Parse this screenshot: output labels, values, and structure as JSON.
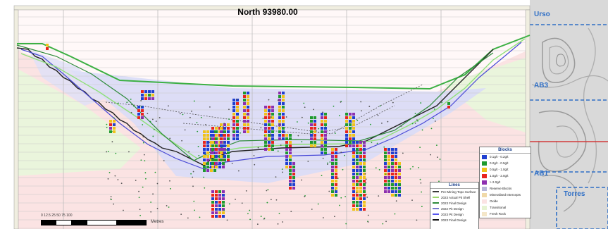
{
  "section_title": "North  93980.00",
  "zone_labels": {
    "urso": "Urso",
    "ab3": "AB3",
    "ab1": "AB1",
    "torres": "Torres"
  },
  "legend_blocks": {
    "title": "Blocks",
    "items": [
      {
        "label": "0.1g/t - 0.2g/t",
        "color": "#1f3fd0"
      },
      {
        "label": "0.2g/t - 0.5g/t",
        "color": "#1f9a2e"
      },
      {
        "label": "0.5g/t - 1.0g/t",
        "color": "#f0c21a"
      },
      {
        "label": "1.0g/t - 2.0g/t",
        "color": "#e8251c"
      },
      {
        "label": "> 2.0g/t",
        "color": "#8d2fb0"
      },
      {
        "label": "Reserve Blocks",
        "color": "#b7b7d8"
      },
      {
        "label": "Mineralised Intercepts",
        "color": "#f0d9a8"
      },
      {
        "label": "Oxide",
        "color": "#fbe3e3"
      },
      {
        "label": "Transitional",
        "color": "#e6f3d2"
      },
      {
        "label": "Fresh Rock",
        "color": "#f4e6c8"
      }
    ]
  },
  "legend_lines": {
    "title": "Lines",
    "items": [
      {
        "label": "Pre-Mining Topo Surface",
        "color": "#3a3a3a"
      },
      {
        "label": "2023 Actual Pit Shell",
        "color": "#9ad66c"
      },
      {
        "label": "2023 Final Design",
        "color": "#2e8b3a"
      },
      {
        "label": "2022 Pit Design",
        "color": "#7777cc"
      },
      {
        "label": "2023 Pit Design",
        "color": "#5555ee"
      },
      {
        "label": "2023 Final Design",
        "color": "#111111"
      }
    ]
  },
  "scale_bar": {
    "ticks": "0  12.5  25       50        75       100",
    "unit": "Metres"
  },
  "colors": {
    "oxide": "#fbe3e3",
    "transitional": "#e6f3d2",
    "reserve": "#cfd0f0",
    "topo": "#3cb043",
    "pit_final": "#222222",
    "pit_design": "#4a4ad6",
    "shell": "#8fe07a",
    "dashed": "#2f6fc6",
    "redline": "#d23a3a"
  }
}
